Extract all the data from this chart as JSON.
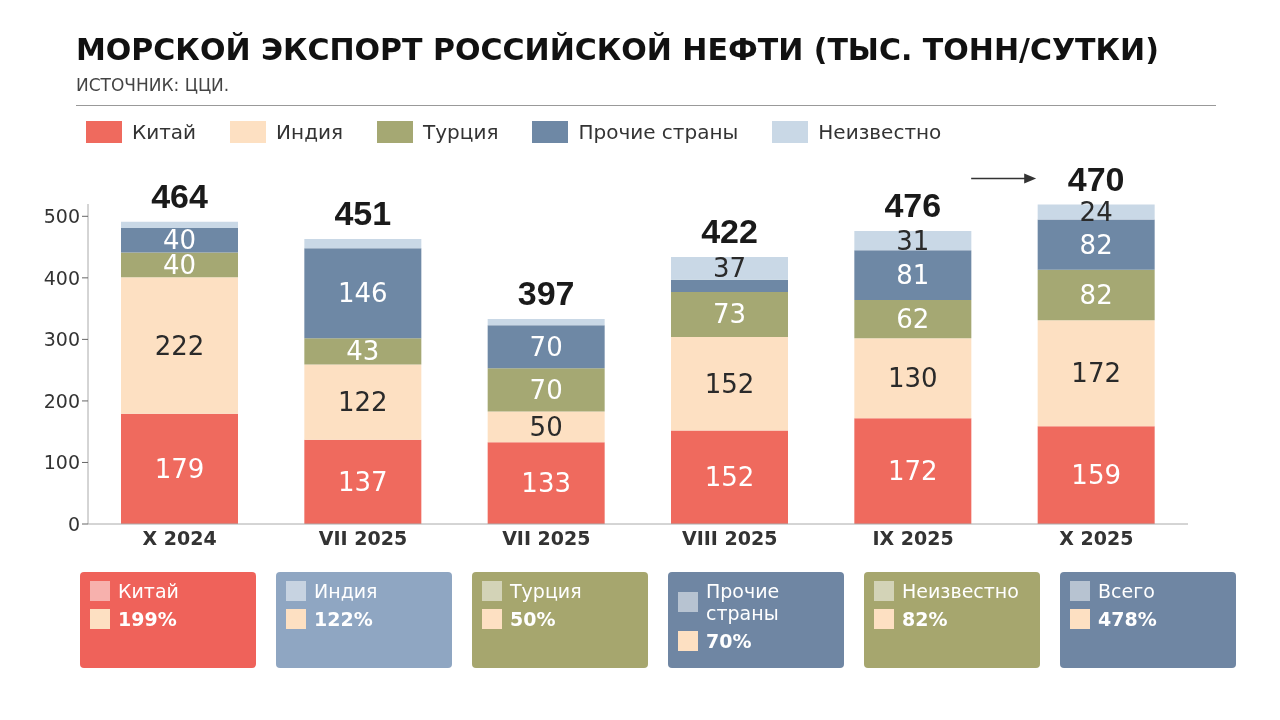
{
  "chart_data": {
    "type": "bar",
    "title": "МОРСКОЙ ЭКСПОРТ РОССИЙСКОЙ НЕФТИ (ТЫС. ТОНН/СУТКИ)",
    "subtitle": "ИСТОЧНИК: ЦЦИ.",
    "categories": [
      "X 2024",
      "VII 2025",
      "VII 2025",
      "VIII 2025",
      "IX 2025",
      "X 2025"
    ],
    "stacked": true,
    "series": [
      {
        "name": "Китай",
        "color": "#ef6a5e",
        "values": [
          179,
          137,
          133,
          152,
          172,
          159
        ],
        "value_labels": [
          "179",
          "137",
          "133",
          "152",
          "172",
          "159"
        ]
      },
      {
        "name": "Индия",
        "color": "#fde0c2",
        "values": [
          222,
          122,
          50,
          152,
          130,
          172
        ],
        "value_labels": [
          "222",
          "122",
          "50",
          "152",
          "130",
          "172"
        ]
      },
      {
        "name": "Турция",
        "color": "#a5a873",
        "values": [
          40,
          43,
          70,
          73,
          62,
          82
        ],
        "value_labels": [
          "40",
          "43",
          "70",
          "73",
          "62",
          "82"
        ]
      },
      {
        "name": "Прочие страны",
        "color": "#6e88a5",
        "values": [
          40,
          146,
          70,
          20,
          81,
          82
        ],
        "value_labels": [
          "40",
          "146",
          "70",
          null,
          "81",
          "82"
        ]
      },
      {
        "name": "Неизвестно",
        "color": "#c9d8e6",
        "values": [
          10,
          15,
          10,
          37,
          31,
          24
        ],
        "value_labels": [
          null,
          null,
          null,
          "37",
          "31",
          "24"
        ]
      }
    ],
    "ylim": [
      0,
      520
    ],
    "yticks": [
      0,
      100,
      200,
      300,
      400,
      500
    ],
    "grid": false,
    "legend": "top",
    "annotations": [
      "464",
      "451",
      "397",
      "422",
      "476",
      "470",
      "Китай",
      "199%",
      "Индия",
      "122%",
      "Турция",
      "50%",
      "Прочие страны",
      "70%",
      "Неизвестно",
      "82%",
      "Всего",
      "478%"
    ]
  }
}
